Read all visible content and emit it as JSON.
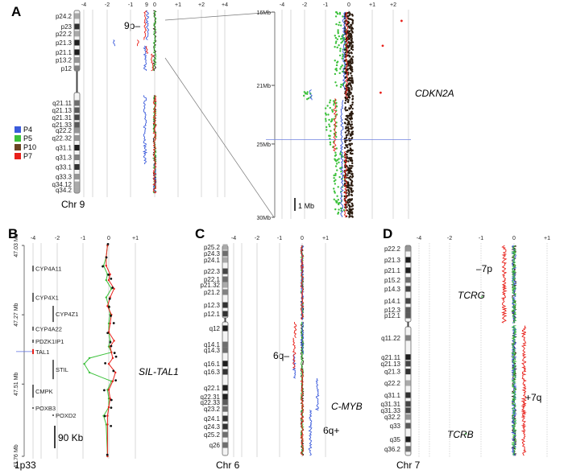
{
  "legend": [
    {
      "name": "P4",
      "color": "#3b5bdb"
    },
    {
      "name": "P5",
      "color": "#3cc13b"
    },
    {
      "name": "P10",
      "color": "#6b4423"
    },
    {
      "name": "P7",
      "color": "#e8201a"
    }
  ],
  "chart_data": [
    {
      "panel": "A",
      "type": "line",
      "chromosome": "Chr 9",
      "x_ticks": [
        "-4",
        "-2",
        "-1",
        "9",
        "0",
        "+1",
        "+2",
        "+4"
      ],
      "annotation": "9p–",
      "bands": [
        {
          "name": "p24.2",
          "mb": 3.6,
          "stain": 0.3
        },
        {
          "name": "p23",
          "mb": 10.4,
          "stain": 0.9
        },
        {
          "name": "p22.2",
          "mb": 15,
          "stain": 0.3
        },
        {
          "name": "p21.3",
          "mb": 20.8,
          "stain": 1
        },
        {
          "name": "p21.1",
          "mb": 27,
          "stain": 1
        },
        {
          "name": "p13.2",
          "mb": 32,
          "stain": 0.4
        },
        {
          "name": "p12",
          "mb": 37.4,
          "stain": 0.5
        },
        {
          "name": "q21.11",
          "mb": 75.6,
          "stain": 0.6
        },
        {
          "name": "q21.13",
          "mb": 80.8,
          "stain": 0.7
        },
        {
          "name": "q21.31",
          "mb": 86,
          "stain": 0.8
        },
        {
          "name": "q21.33",
          "mb": 91.4,
          "stain": 0.7
        },
        {
          "name": "q22.2",
          "mb": 95.4,
          "stain": 0.4
        },
        {
          "name": "q22.32",
          "mb": 101,
          "stain": 0.4
        },
        {
          "name": "q31.1",
          "mb": 108,
          "stain": 1
        },
        {
          "name": "q31.3",
          "mb": 115,
          "stain": 0.5
        },
        {
          "name": "q33.1",
          "mb": 122,
          "stain": 0.9
        },
        {
          "name": "q33.3",
          "mb": 129,
          "stain": 0.4
        },
        {
          "name": "q34.12",
          "mb": 134.6,
          "stain": 0.3
        },
        {
          "name": "q34.2",
          "mb": 138.7,
          "stain": 0.3
        }
      ],
      "series": [
        {
          "name": "P10",
          "segments": [
            [
              0,
              39,
              0
            ],
            [
              70,
              141,
              0
            ]
          ]
        },
        {
          "name": "P5",
          "segments": [
            [
              0,
              39,
              0
            ],
            [
              70,
              141,
              0
            ]
          ]
        },
        {
          "name": "P4",
          "segments": [
            [
              0,
              19,
              -0.3
            ],
            [
              19,
              23,
              -1.7
            ],
            [
              23,
              39,
              -0.4
            ],
            [
              70,
              120,
              -0.4
            ],
            [
              120,
              141,
              0
            ]
          ]
        },
        {
          "name": "P7",
          "segments": [
            [
              0,
              19,
              -0.4
            ],
            [
              19,
              23,
              -0.7
            ],
            [
              23,
              28,
              -0.3
            ],
            [
              28,
              39,
              -0.1
            ],
            [
              70,
              141,
              0
            ]
          ]
        }
      ],
      "zoom": {
        "y_ticks": [
          "16Mb",
          "21Mb",
          "25Mb",
          "30Mb"
        ],
        "y_tick_values": [
          16,
          21,
          25,
          30
        ],
        "y_range": [
          16,
          30
        ],
        "x_ticks": [
          "-4",
          "-2",
          "-1",
          "0",
          "+1",
          "+2"
        ],
        "gene": "CDKN2A",
        "gene_position_mb": 22.0,
        "scale_bar": "1 Mb",
        "series": [
          {
            "name": "P4",
            "segments": [
              [
                16,
                21.3,
                -0.2
              ],
              [
                21.3,
                22.0,
                -1.7
              ],
              [
                22.0,
                30,
                -0.3
              ]
            ]
          },
          {
            "name": "P7",
            "segments": [
              [
                16,
                21.9,
                -0.1
              ],
              [
                21.9,
                25.5,
                -0.6
              ],
              [
                25.5,
                30,
                -0.15
              ]
            ]
          },
          {
            "name": "P5",
            "points_segments": [
              [
                16,
                21.3,
                -0.35
              ],
              [
                21.3,
                22.0,
                -1.9
              ],
              [
                22.0,
                25.5,
                -0.75
              ],
              [
                25.5,
                30,
                -0.4
              ]
            ]
          },
          {
            "name": "P10",
            "points_segments": [
              [
                16,
                30,
                0.0
              ]
            ]
          }
        ],
        "outliers": [
          [
            16.6,
            2.4
          ],
          [
            18.3,
            1.5
          ],
          [
            21.5,
            1.4
          ]
        ]
      }
    },
    {
      "panel": "B",
      "type": "line",
      "region": "1p33",
      "x_ticks": [
        "-4",
        "-2",
        "-1",
        "0",
        "+1"
      ],
      "y_ticks": [
        "47.03 Mb",
        "47.27 Mb",
        "47.51 Mb",
        "47.76 Mb"
      ],
      "y_tick_values": [
        47.03,
        47.27,
        47.51,
        47.76
      ],
      "y_range": [
        47.03,
        47.76
      ],
      "gene_label": "SIL-TAL1",
      "scale_bar": "90 Kb",
      "genes": [
        {
          "name": "CYP4A11",
          "start": 47.1,
          "end": 47.12
        },
        {
          "name": "CYP4X1",
          "start": 47.194,
          "end": 47.225
        },
        {
          "name": "CYP4Z1",
          "start": 47.239,
          "end": 47.295
        },
        {
          "name": "CYP4A22",
          "start": 47.311,
          "end": 47.325
        },
        {
          "name": "PDZK1IP1",
          "start": 47.356,
          "end": 47.367
        },
        {
          "name": "TAL1",
          "start": 47.389,
          "end": 47.406,
          "highlight": "#e8201a"
        },
        {
          "name": "STIL",
          "start": 47.426,
          "end": 47.493
        },
        {
          "name": "CMPK",
          "start": 47.512,
          "end": 47.557
        },
        {
          "name": "POXB3",
          "start": 47.59,
          "end": 47.593
        },
        {
          "name": "POXD2",
          "start": 47.615,
          "end": 47.618
        }
      ],
      "positions": [
        47.03,
        47.07,
        47.1,
        47.13,
        47.15,
        47.18,
        47.21,
        47.24,
        47.27,
        47.3,
        47.33,
        47.36,
        47.38,
        47.4,
        47.42,
        47.44,
        47.47,
        47.5,
        47.53,
        47.56,
        47.59,
        47.62,
        47.65,
        47.76
      ],
      "series": [
        {
          "name": "P5",
          "values": [
            -0.05,
            -0.1,
            -0.2,
            -0.05,
            -0.1,
            0.1,
            -0.1,
            0.0,
            0.05,
            0.0,
            0.0,
            0.05,
            0.0,
            0.1,
            -0.75,
            -0.95,
            -0.75,
            0.1,
            -0.05,
            0.0,
            0.0,
            -0.2,
            -0.1,
            -0.05
          ]
        },
        {
          "name": "P7",
          "values": [
            -0.05,
            -0.1,
            -0.1,
            0.05,
            0.0,
            0.2,
            0.05,
            -0.05,
            0.1,
            0.05,
            0.0,
            0.2,
            0.05,
            0.1,
            0.15,
            0.0,
            0.25,
            0.15,
            0.0,
            0.05,
            0.0,
            -0.05,
            -0.05,
            -0.05
          ]
        }
      ]
    },
    {
      "panel": "C",
      "type": "line",
      "chromosome": "Chr 6",
      "x_ticks": [
        "-4",
        "-2",
        "-1",
        "0",
        "+1"
      ],
      "annotations": {
        "loss": "6q–",
        "gene": "C-MYB",
        "gain": "6q+"
      },
      "bands": [
        {
          "name": "p25.2",
          "mb": 1.3,
          "stain": 0.3
        },
        {
          "name": "p24.3",
          "mb": 6.5,
          "stain": 0.6
        },
        {
          "name": "p24.1",
          "mb": 11.7,
          "stain": 0.3
        },
        {
          "name": "p22.3",
          "mb": 20.9,
          "stain": 0.8
        },
        {
          "name": "p22.1",
          "mb": 27.4,
          "stain": 0.6
        },
        {
          "name": "p21.32",
          "mb": 32,
          "stain": 0.3
        },
        {
          "name": "p21.2",
          "mb": 37.8,
          "stain": 0.5
        },
        {
          "name": "p12.3",
          "mb": 48.3,
          "stain": 0.9
        },
        {
          "name": "p12.1",
          "mb": 55.4,
          "stain": 0.9
        },
        {
          "name": "q12",
          "mb": 67.2,
          "stain": 1
        },
        {
          "name": "q14.1",
          "mb": 80.4,
          "stain": 0.6
        },
        {
          "name": "q14.3",
          "mb": 85,
          "stain": 0.6
        },
        {
          "name": "q16.1",
          "mb": 96,
          "stain": 1
        },
        {
          "name": "q16.3",
          "mb": 102.7,
          "stain": 0.9
        },
        {
          "name": "q22.1",
          "mb": 115.8,
          "stain": 1
        },
        {
          "name": "q22.31",
          "mb": 123,
          "stain": 1
        },
        {
          "name": "q22.33",
          "mb": 127.6,
          "stain": 0.7
        },
        {
          "name": "q23.2",
          "mb": 133,
          "stain": 0.6
        },
        {
          "name": "q24.1",
          "mb": 140.8,
          "stain": 0.9
        },
        {
          "name": "q24.3",
          "mb": 147.4,
          "stain": 0.9
        },
        {
          "name": "q25.2",
          "mb": 154,
          "stain": 0.6
        },
        {
          "name": "q26",
          "mb": 162.5,
          "stain": 0.6
        }
      ],
      "series": [
        {
          "name": "P10",
          "segments": [
            [
              0,
              60,
              0
            ],
            [
              62,
              171,
              0
            ]
          ]
        },
        {
          "name": "P5",
          "segments": [
            [
              0,
              60,
              0
            ],
            [
              62,
              171,
              0
            ]
          ]
        },
        {
          "name": "P4",
          "segments": [
            [
              0,
              60,
              0
            ],
            [
              62,
              88,
              0
            ],
            [
              88,
              108,
              -0.35
            ],
            [
              108,
              134,
              0.65
            ],
            [
              134,
              171,
              0.35
            ]
          ]
        },
        {
          "name": "P7",
          "segments": [
            [
              0,
              60,
              0
            ],
            [
              62,
              75,
              -0.3
            ],
            [
              75,
              100,
              -0.35
            ],
            [
              100,
              171,
              0
            ]
          ]
        }
      ]
    },
    {
      "panel": "D",
      "type": "line",
      "chromosome": "Chr 7",
      "x_ticks": [
        "-4",
        "-2",
        "-1",
        "0",
        "+1"
      ],
      "annotations": {
        "loss": "–7p",
        "gene1": "TCRG",
        "gain": "+7q",
        "gene2": "TCRB"
      },
      "bands": [
        {
          "name": "p22.2",
          "mb": 2.4,
          "stain": 0.4
        },
        {
          "name": "p21.3",
          "mb": 10.8,
          "stain": 1
        },
        {
          "name": "p21.1",
          "mb": 18.6,
          "stain": 1
        },
        {
          "name": "p15.2",
          "mb": 25.8,
          "stain": 0.6
        },
        {
          "name": "p14.3",
          "mb": 32.5,
          "stain": 0.8
        },
        {
          "name": "p14.1",
          "mb": 41.5,
          "stain": 0.8
        },
        {
          "name": "p12.3",
          "mb": 48.2,
          "stain": 0.7
        },
        {
          "name": "p12.1",
          "mb": 52.4,
          "stain": 0.7
        },
        {
          "name": "q11.22",
          "mb": 69.4,
          "stain": 0.5
        },
        {
          "name": "q21.11",
          "mb": 84,
          "stain": 1
        },
        {
          "name": "q21.13",
          "mb": 89,
          "stain": 0.8
        },
        {
          "name": "q21.3",
          "mb": 95,
          "stain": 0.9
        },
        {
          "name": "q22.2",
          "mb": 103.8,
          "stain": 0.3
        },
        {
          "name": "q31.1",
          "mb": 113,
          "stain": 0.9
        },
        {
          "name": "q31.31",
          "mb": 119.7,
          "stain": 0.8
        },
        {
          "name": "q31.33",
          "mb": 124.6,
          "stain": 0.8
        },
        {
          "name": "q32.2",
          "mb": 129.6,
          "stain": 0.4
        },
        {
          "name": "q33",
          "mb": 136.3,
          "stain": 0.7
        },
        {
          "name": "q35",
          "mb": 146.7,
          "stain": 1
        },
        {
          "name": "q36.2",
          "mb": 154,
          "stain": 0.6
        }
      ],
      "series": [
        {
          "name": "P10",
          "segments": [
            [
              0,
              58,
              0
            ],
            [
              60,
              159,
              0
            ]
          ]
        },
        {
          "name": "P4",
          "segments": [
            [
              0,
              58,
              0
            ],
            [
              60,
              159,
              0
            ]
          ]
        },
        {
          "name": "P5",
          "segments": [
            [
              0,
              38,
              0
            ],
            [
              38,
              39,
              -1.0
            ],
            [
              39,
              58,
              0
            ],
            [
              60,
              142,
              0
            ],
            [
              142,
              143,
              -1.5
            ],
            [
              143,
              159,
              0
            ]
          ]
        },
        {
          "name": "P7",
          "segments": [
            [
              0,
              58,
              -0.3
            ],
            [
              60,
              159,
              0.3
            ]
          ]
        }
      ]
    }
  ],
  "labels": {
    "A": "A",
    "B": "B",
    "C": "C",
    "D": "D"
  }
}
